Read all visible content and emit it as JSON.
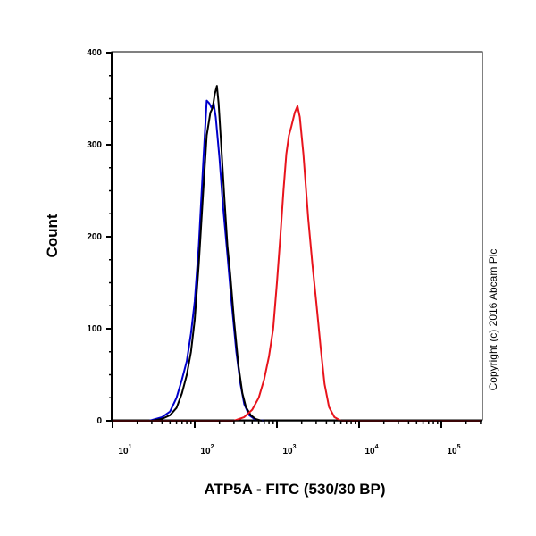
{
  "chart_data": {
    "type": "line",
    "title": "",
    "xlabel": "ATP5A - FITC (530/30 BP)",
    "ylabel": "Count",
    "x_scale": "log",
    "xlim": [
      10,
      300000
    ],
    "ylim": [
      0,
      400
    ],
    "x_ticks": [
      {
        "base": "10",
        "exp": "1"
      },
      {
        "base": "10",
        "exp": "2"
      },
      {
        "base": "10",
        "exp": "3"
      },
      {
        "base": "10",
        "exp": "4"
      },
      {
        "base": "10",
        "exp": "5"
      }
    ],
    "y_ticks": [
      "0",
      "100",
      "200",
      "300",
      "400"
    ],
    "grid": false,
    "annotation": "Copyright (c) 2016 Abcam Plc",
    "series": [
      {
        "color": "#0000cc",
        "points": [
          [
            28,
            0
          ],
          [
            40,
            4
          ],
          [
            50,
            10
          ],
          [
            60,
            25
          ],
          [
            70,
            45
          ],
          [
            80,
            65
          ],
          [
            90,
            95
          ],
          [
            100,
            130
          ],
          [
            112,
            190
          ],
          [
            125,
            270
          ],
          [
            140,
            348
          ],
          [
            150,
            345
          ],
          [
            160,
            340
          ],
          [
            170,
            345
          ],
          [
            180,
            330
          ],
          [
            200,
            285
          ],
          [
            220,
            235
          ],
          [
            250,
            180
          ],
          [
            280,
            130
          ],
          [
            320,
            75
          ],
          [
            360,
            40
          ],
          [
            400,
            18
          ],
          [
            460,
            6
          ],
          [
            550,
            1
          ],
          [
            700,
            0
          ]
        ]
      },
      {
        "color": "#000000",
        "points": [
          [
            30,
            0
          ],
          [
            40,
            2
          ],
          [
            50,
            6
          ],
          [
            60,
            14
          ],
          [
            70,
            30
          ],
          [
            80,
            50
          ],
          [
            90,
            75
          ],
          [
            100,
            110
          ],
          [
            112,
            170
          ],
          [
            125,
            240
          ],
          [
            140,
            310
          ],
          [
            155,
            335
          ],
          [
            165,
            340
          ],
          [
            175,
            355
          ],
          [
            186,
            364
          ],
          [
            195,
            345
          ],
          [
            210,
            300
          ],
          [
            230,
            240
          ],
          [
            250,
            190
          ],
          [
            270,
            160
          ],
          [
            300,
            110
          ],
          [
            340,
            60
          ],
          [
            380,
            30
          ],
          [
            420,
            15
          ],
          [
            480,
            6
          ],
          [
            550,
            2
          ],
          [
            650,
            0
          ]
        ]
      },
      {
        "color": "#e8141c",
        "points": [
          [
            10,
            0
          ],
          [
            300,
            0
          ],
          [
            400,
            4
          ],
          [
            500,
            12
          ],
          [
            600,
            25
          ],
          [
            700,
            45
          ],
          [
            800,
            70
          ],
          [
            900,
            100
          ],
          [
            1000,
            150
          ],
          [
            1100,
            200
          ],
          [
            1200,
            250
          ],
          [
            1300,
            290
          ],
          [
            1400,
            310
          ],
          [
            1500,
            320
          ],
          [
            1650,
            335
          ],
          [
            1780,
            342
          ],
          [
            1900,
            330
          ],
          [
            2100,
            290
          ],
          [
            2400,
            220
          ],
          [
            2700,
            170
          ],
          [
            3000,
            130
          ],
          [
            3400,
            80
          ],
          [
            3800,
            40
          ],
          [
            4300,
            15
          ],
          [
            5000,
            4
          ],
          [
            6000,
            0
          ],
          [
            300000,
            0
          ]
        ]
      }
    ]
  }
}
